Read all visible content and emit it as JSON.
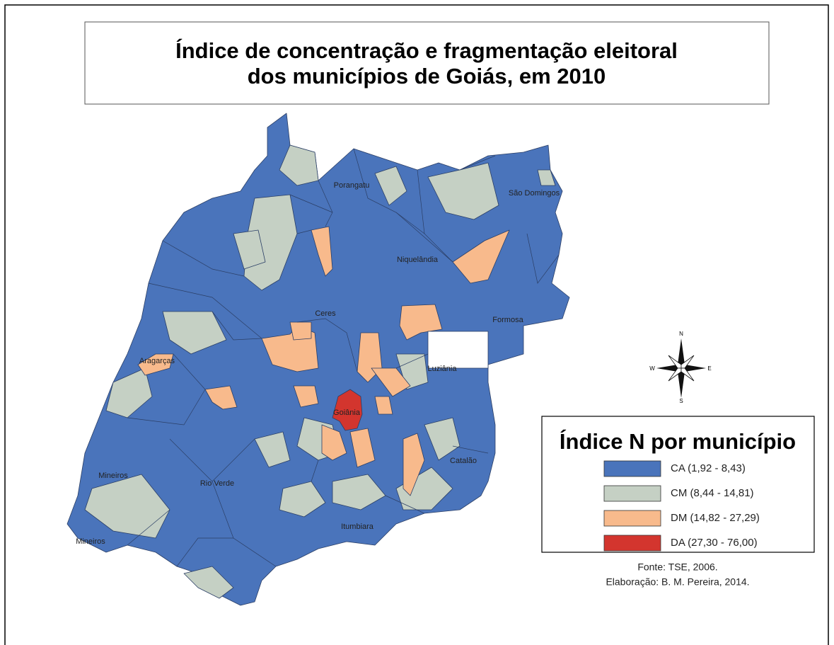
{
  "title": [
    "Índice de concentração e fragmentação eleitoral",
    "dos municípios de Goiás, em 2010"
  ],
  "cities": [
    "Porangatu",
    "São Domingos",
    "Niquelândia",
    "Ceres",
    "Formosa",
    "Aragarças",
    "Luziânia",
    "Goiânia",
    "Mineiros",
    "Rio Verde",
    "Catalão",
    "Itumbiara",
    "Mineiros"
  ],
  "compass": {
    "n": "N",
    "s": "S",
    "e": "E",
    "w": "W"
  },
  "legend": {
    "title": "Índice N por município",
    "items": [
      {
        "label": "CA (1,92 - 8,43)",
        "color": "#4a74bb"
      },
      {
        "label": "CM (8,44 - 14,81)",
        "color": "#c5d0c4"
      },
      {
        "label": "DM (14,82 - 27,29)",
        "color": "#f8ba8c"
      },
      {
        "label": "DA (27,30 - 76,00)",
        "color": "#d3352e"
      }
    ]
  },
  "source": [
    "Fonte: TSE, 2006.",
    "Elaboração: B. M. Pereira, 2014."
  ]
}
